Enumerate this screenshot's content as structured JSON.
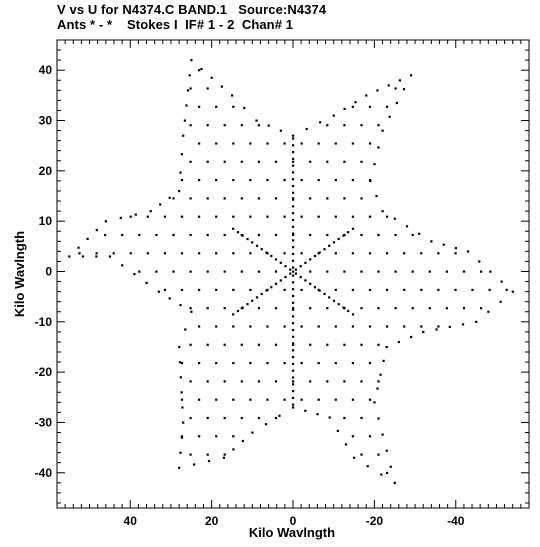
{
  "header": {
    "line1": "V vs U for N4374.C BAND.1   Source:N4374",
    "line2": "Ants * - *    Stokes I  IF# 1 - 2  Chan# 1"
  },
  "chart_data": {
    "type": "scatter",
    "title": "V vs U for N4374.C BAND.1   Source:N4374",
    "subtitle": "Ants * - *    Stokes I  IF# 1 - 2  Chan# 1",
    "xlabel": "Kilo Wavlngth",
    "ylabel": "Kilo Wavlngth",
    "xlim": [
      58,
      -58
    ],
    "ylim": [
      -47,
      46
    ],
    "x_reversed": true,
    "xticks": [
      40,
      20,
      0,
      -20,
      -40
    ],
    "xtick_labels": [
      "40",
      "20",
      "0",
      "-20",
      "-40"
    ],
    "yticks": [
      40,
      30,
      20,
      10,
      0,
      -10,
      -20,
      -30,
      -40
    ],
    "ytick_labels": [
      "40",
      "30",
      "20",
      "10",
      "0",
      "-10",
      "-20",
      "-30",
      "-40"
    ],
    "grid": false,
    "legend": false,
    "marker_color": "#000000",
    "arms": [
      {
        "angle_deg": 90,
        "max_radius": 27
      },
      {
        "angle_deg": 30,
        "max_radius": 17
      },
      {
        "angle_deg": 150,
        "max_radius": 17
      },
      {
        "angle_deg": 270,
        "max_radius": 27
      },
      {
        "angle_deg": 210,
        "max_radius": 17
      },
      {
        "angle_deg": 330,
        "max_radius": 17
      }
    ],
    "star_outline": [
      [
        -29,
        39
      ],
      [
        -22,
        28
      ],
      [
        -19,
        18
      ],
      [
        -22,
        12
      ],
      [
        -34,
        6
      ],
      [
        -43,
        4
      ],
      [
        -54,
        -4
      ],
      [
        -45,
        -10
      ],
      [
        -32,
        -12
      ],
      [
        -23,
        -15
      ],
      [
        -20,
        -26
      ],
      [
        -25,
        -42
      ],
      [
        -15,
        -37
      ],
      [
        -9,
        -29
      ],
      [
        0,
        -27
      ],
      [
        10,
        -32
      ],
      [
        17,
        -37
      ],
      [
        28,
        -39
      ],
      [
        27,
        -30
      ],
      [
        28,
        -15
      ],
      [
        25,
        -8
      ],
      [
        33,
        -4
      ],
      [
        45,
        3
      ],
      [
        55,
        3
      ],
      [
        46,
        10
      ],
      [
        35,
        12
      ],
      [
        28,
        16
      ],
      [
        27,
        27
      ],
      [
        25,
        42
      ],
      [
        15,
        35
      ],
      [
        9,
        30
      ],
      [
        0,
        27
      ],
      [
        -10,
        31
      ],
      [
        -18,
        35
      ]
    ]
  }
}
